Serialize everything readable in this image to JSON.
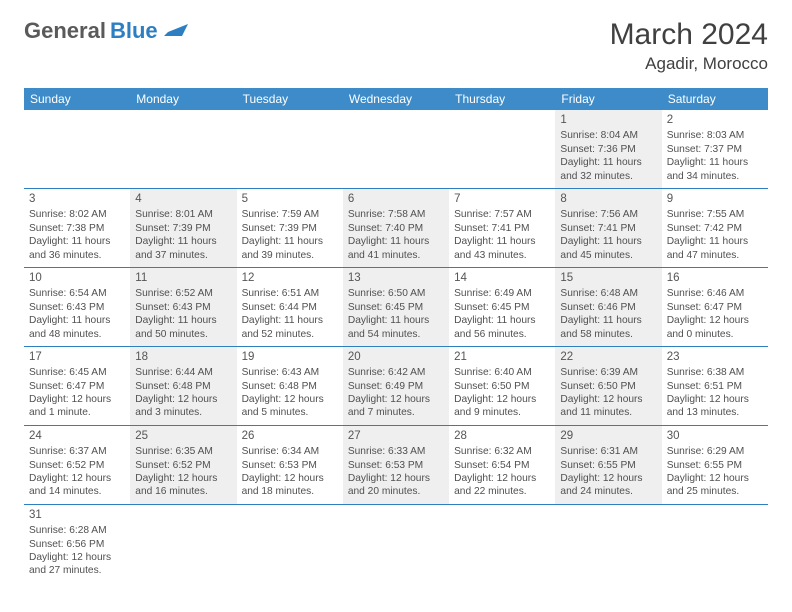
{
  "logo": {
    "word1": "General",
    "word2": "Blue"
  },
  "title": "March 2024",
  "location": "Agadir, Morocco",
  "colors": {
    "header_bg": "#3d8bc8",
    "header_text": "#ffffff",
    "border": "#2e7fc2",
    "alt_cell": "#efefef",
    "text": "#404040",
    "logo_accent": "#2e7fc2"
  },
  "day_headers": [
    "Sunday",
    "Monday",
    "Tuesday",
    "Wednesday",
    "Thursday",
    "Friday",
    "Saturday"
  ],
  "weeks": [
    [
      null,
      null,
      null,
      null,
      null,
      {
        "d": "1",
        "sr": "8:04 AM",
        "ss": "7:36 PM",
        "dl": "11 hours and 32 minutes."
      },
      {
        "d": "2",
        "sr": "8:03 AM",
        "ss": "7:37 PM",
        "dl": "11 hours and 34 minutes."
      }
    ],
    [
      {
        "d": "3",
        "sr": "8:02 AM",
        "ss": "7:38 PM",
        "dl": "11 hours and 36 minutes."
      },
      {
        "d": "4",
        "sr": "8:01 AM",
        "ss": "7:39 PM",
        "dl": "11 hours and 37 minutes."
      },
      {
        "d": "5",
        "sr": "7:59 AM",
        "ss": "7:39 PM",
        "dl": "11 hours and 39 minutes."
      },
      {
        "d": "6",
        "sr": "7:58 AM",
        "ss": "7:40 PM",
        "dl": "11 hours and 41 minutes."
      },
      {
        "d": "7",
        "sr": "7:57 AM",
        "ss": "7:41 PM",
        "dl": "11 hours and 43 minutes."
      },
      {
        "d": "8",
        "sr": "7:56 AM",
        "ss": "7:41 PM",
        "dl": "11 hours and 45 minutes."
      },
      {
        "d": "9",
        "sr": "7:55 AM",
        "ss": "7:42 PM",
        "dl": "11 hours and 47 minutes."
      }
    ],
    [
      {
        "d": "10",
        "sr": "6:54 AM",
        "ss": "6:43 PM",
        "dl": "11 hours and 48 minutes."
      },
      {
        "d": "11",
        "sr": "6:52 AM",
        "ss": "6:43 PM",
        "dl": "11 hours and 50 minutes."
      },
      {
        "d": "12",
        "sr": "6:51 AM",
        "ss": "6:44 PM",
        "dl": "11 hours and 52 minutes."
      },
      {
        "d": "13",
        "sr": "6:50 AM",
        "ss": "6:45 PM",
        "dl": "11 hours and 54 minutes."
      },
      {
        "d": "14",
        "sr": "6:49 AM",
        "ss": "6:45 PM",
        "dl": "11 hours and 56 minutes."
      },
      {
        "d": "15",
        "sr": "6:48 AM",
        "ss": "6:46 PM",
        "dl": "11 hours and 58 minutes."
      },
      {
        "d": "16",
        "sr": "6:46 AM",
        "ss": "6:47 PM",
        "dl": "12 hours and 0 minutes."
      }
    ],
    [
      {
        "d": "17",
        "sr": "6:45 AM",
        "ss": "6:47 PM",
        "dl": "12 hours and 1 minute."
      },
      {
        "d": "18",
        "sr": "6:44 AM",
        "ss": "6:48 PM",
        "dl": "12 hours and 3 minutes."
      },
      {
        "d": "19",
        "sr": "6:43 AM",
        "ss": "6:48 PM",
        "dl": "12 hours and 5 minutes."
      },
      {
        "d": "20",
        "sr": "6:42 AM",
        "ss": "6:49 PM",
        "dl": "12 hours and 7 minutes."
      },
      {
        "d": "21",
        "sr": "6:40 AM",
        "ss": "6:50 PM",
        "dl": "12 hours and 9 minutes."
      },
      {
        "d": "22",
        "sr": "6:39 AM",
        "ss": "6:50 PM",
        "dl": "12 hours and 11 minutes."
      },
      {
        "d": "23",
        "sr": "6:38 AM",
        "ss": "6:51 PM",
        "dl": "12 hours and 13 minutes."
      }
    ],
    [
      {
        "d": "24",
        "sr": "6:37 AM",
        "ss": "6:52 PM",
        "dl": "12 hours and 14 minutes."
      },
      {
        "d": "25",
        "sr": "6:35 AM",
        "ss": "6:52 PM",
        "dl": "12 hours and 16 minutes."
      },
      {
        "d": "26",
        "sr": "6:34 AM",
        "ss": "6:53 PM",
        "dl": "12 hours and 18 minutes."
      },
      {
        "d": "27",
        "sr": "6:33 AM",
        "ss": "6:53 PM",
        "dl": "12 hours and 20 minutes."
      },
      {
        "d": "28",
        "sr": "6:32 AM",
        "ss": "6:54 PM",
        "dl": "12 hours and 22 minutes."
      },
      {
        "d": "29",
        "sr": "6:31 AM",
        "ss": "6:55 PM",
        "dl": "12 hours and 24 minutes."
      },
      {
        "d": "30",
        "sr": "6:29 AM",
        "ss": "6:55 PM",
        "dl": "12 hours and 25 minutes."
      }
    ],
    [
      {
        "d": "31",
        "sr": "6:28 AM",
        "ss": "6:56 PM",
        "dl": "12 hours and 27 minutes."
      },
      null,
      null,
      null,
      null,
      null,
      null
    ]
  ],
  "labels": {
    "sunrise": "Sunrise: ",
    "sunset": "Sunset: ",
    "daylight": "Daylight: "
  }
}
